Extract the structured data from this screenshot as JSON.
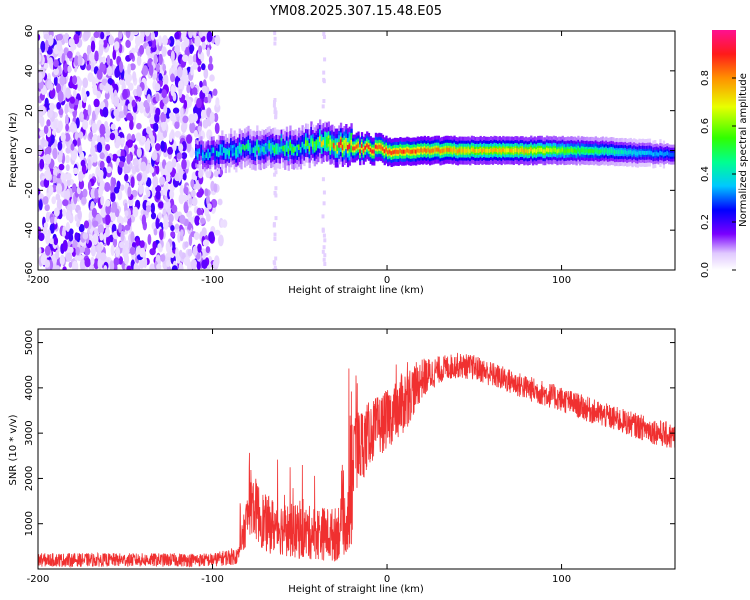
{
  "title": "YM08.2025.307.15.48.E05",
  "colors": {
    "snr_line": "#f03030",
    "axis": "#000000"
  },
  "chart_data": [
    {
      "type": "heatmap",
      "name": "spectrogram",
      "xlabel": "Height of straight line (km)",
      "ylabel": "Frequency (Hz)",
      "xlim": [
        -200,
        165
      ],
      "ylim": [
        -60,
        60
      ],
      "xticks": [
        "-200",
        "-100",
        "0",
        "100"
      ],
      "yticks": [
        "60",
        "40",
        "20",
        "0",
        "-20",
        "-40",
        "-60"
      ],
      "colorbar": {
        "label": "Normalized spectral amplitude",
        "range": [
          0,
          1
        ],
        "ticks": [
          "0.0",
          "0.2",
          "0.4",
          "0.6",
          "0.8"
        ]
      },
      "ridge": [
        {
          "x": -110,
          "freq": -2,
          "amp": 0.3
        },
        {
          "x": -95,
          "freq": -1,
          "amp": 0.35
        },
        {
          "x": -80,
          "freq": 1,
          "amp": 0.4
        },
        {
          "x": -65,
          "freq": 2,
          "amp": 0.45
        },
        {
          "x": -50,
          "freq": 1,
          "amp": 0.45
        },
        {
          "x": -40,
          "freq": 4,
          "amp": 0.55
        },
        {
          "x": -30,
          "freq": 3,
          "amp": 0.7
        },
        {
          "x": -20,
          "freq": 2,
          "amp": 0.85
        },
        {
          "x": -10,
          "freq": 1,
          "amp": 0.9
        },
        {
          "x": 0,
          "freq": -1,
          "amp": 0.9
        },
        {
          "x": 20,
          "freq": 0,
          "amp": 0.85
        },
        {
          "x": 50,
          "freq": 0,
          "amp": 0.75
        },
        {
          "x": 80,
          "freq": 0,
          "amp": 0.75
        },
        {
          "x": 110,
          "freq": 0,
          "amp": 0.55
        },
        {
          "x": 140,
          "freq": -1,
          "amp": 0.4
        },
        {
          "x": 165,
          "freq": -2,
          "amp": 0.3
        }
      ],
      "noise_region_x": [
        -200,
        -92
      ]
    },
    {
      "type": "line",
      "name": "snr",
      "xlabel": "Height of straight line (km)",
      "ylabel": "SNR (10 * v/v)",
      "xlim": [
        -200,
        165
      ],
      "ylim": [
        0,
        5300
      ],
      "xticks": [
        "-200",
        "-100",
        "0",
        "100"
      ],
      "yticks": [
        "1000",
        "2000",
        "3000",
        "4000",
        "5000"
      ],
      "x": [
        -200,
        -150,
        -100,
        -85,
        -78,
        -70,
        -60,
        -50,
        -40,
        -30,
        -20,
        -19,
        -10,
        0,
        10,
        20,
        30,
        40,
        50,
        60,
        80,
        100,
        120,
        140,
        165
      ],
      "y": [
        200,
        200,
        200,
        300,
        1500,
        1000,
        900,
        800,
        800,
        750,
        1200,
        2500,
        3000,
        3300,
        3700,
        4200,
        4400,
        4500,
        4450,
        4300,
        4000,
        3750,
        3450,
        3200,
        2900
      ],
      "spread": [
        150,
        150,
        150,
        200,
        700,
        650,
        600,
        600,
        600,
        600,
        800,
        1000,
        700,
        650,
        700,
        450,
        300,
        280,
        280,
        280,
        280,
        280,
        280,
        280,
        300
      ]
    }
  ]
}
